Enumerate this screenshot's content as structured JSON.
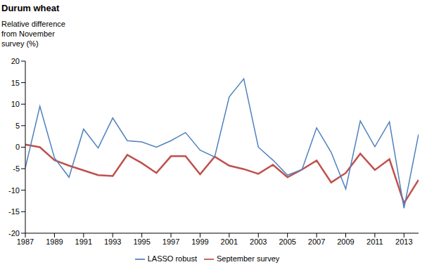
{
  "chart_data": {
    "type": "line",
    "title": "Durum wheat",
    "y_label": "Relative difference from November survey (%)",
    "x": [
      1987,
      1988,
      1989,
      1990,
      1991,
      1992,
      1993,
      1994,
      1995,
      1996,
      1997,
      1998,
      1999,
      2000,
      2001,
      2002,
      2003,
      2004,
      2005,
      2006,
      2007,
      2008,
      2009,
      2010,
      2011,
      2012,
      2013,
      2014
    ],
    "xlim": [
      1987,
      2014
    ],
    "xticks": [
      1987,
      1989,
      1991,
      1993,
      1995,
      1997,
      1999,
      2001,
      2003,
      2005,
      2007,
      2009,
      2011,
      2013
    ],
    "ylim": [
      -20,
      20
    ],
    "yticks": [
      -20,
      -15,
      -10,
      -5,
      0,
      5,
      10,
      15,
      20
    ],
    "grid": false,
    "legend": "bottom",
    "series": [
      {
        "name": "September survey",
        "color": "#c0504d",
        "values": [
          0.6,
          0,
          -3,
          -4.3,
          -5.4,
          -6.5,
          -6.7,
          -1.8,
          -3.7,
          -6,
          -2.1,
          -2.1,
          -6.3,
          -2.2,
          -4.3,
          -5.1,
          -6.2,
          -4.1,
          -7,
          -5.2,
          -3.1,
          -8.2,
          -6,
          -1.5,
          -5.3,
          -2.8,
          -13,
          -7.6
        ]
      },
      {
        "name": "LASSO robust",
        "color": "#4f81bd",
        "values": [
          -4.8,
          9.5,
          -2.5,
          -7,
          4.2,
          -0.2,
          6.8,
          1.5,
          1.2,
          0,
          1.5,
          3.4,
          -0.7,
          -2.3,
          11.7,
          15.9,
          0,
          -3,
          -6.5,
          -5.2,
          4.5,
          -1.2,
          -9.7,
          6.1,
          0.1,
          5.9,
          -14.2,
          3
        ]
      }
    ]
  }
}
